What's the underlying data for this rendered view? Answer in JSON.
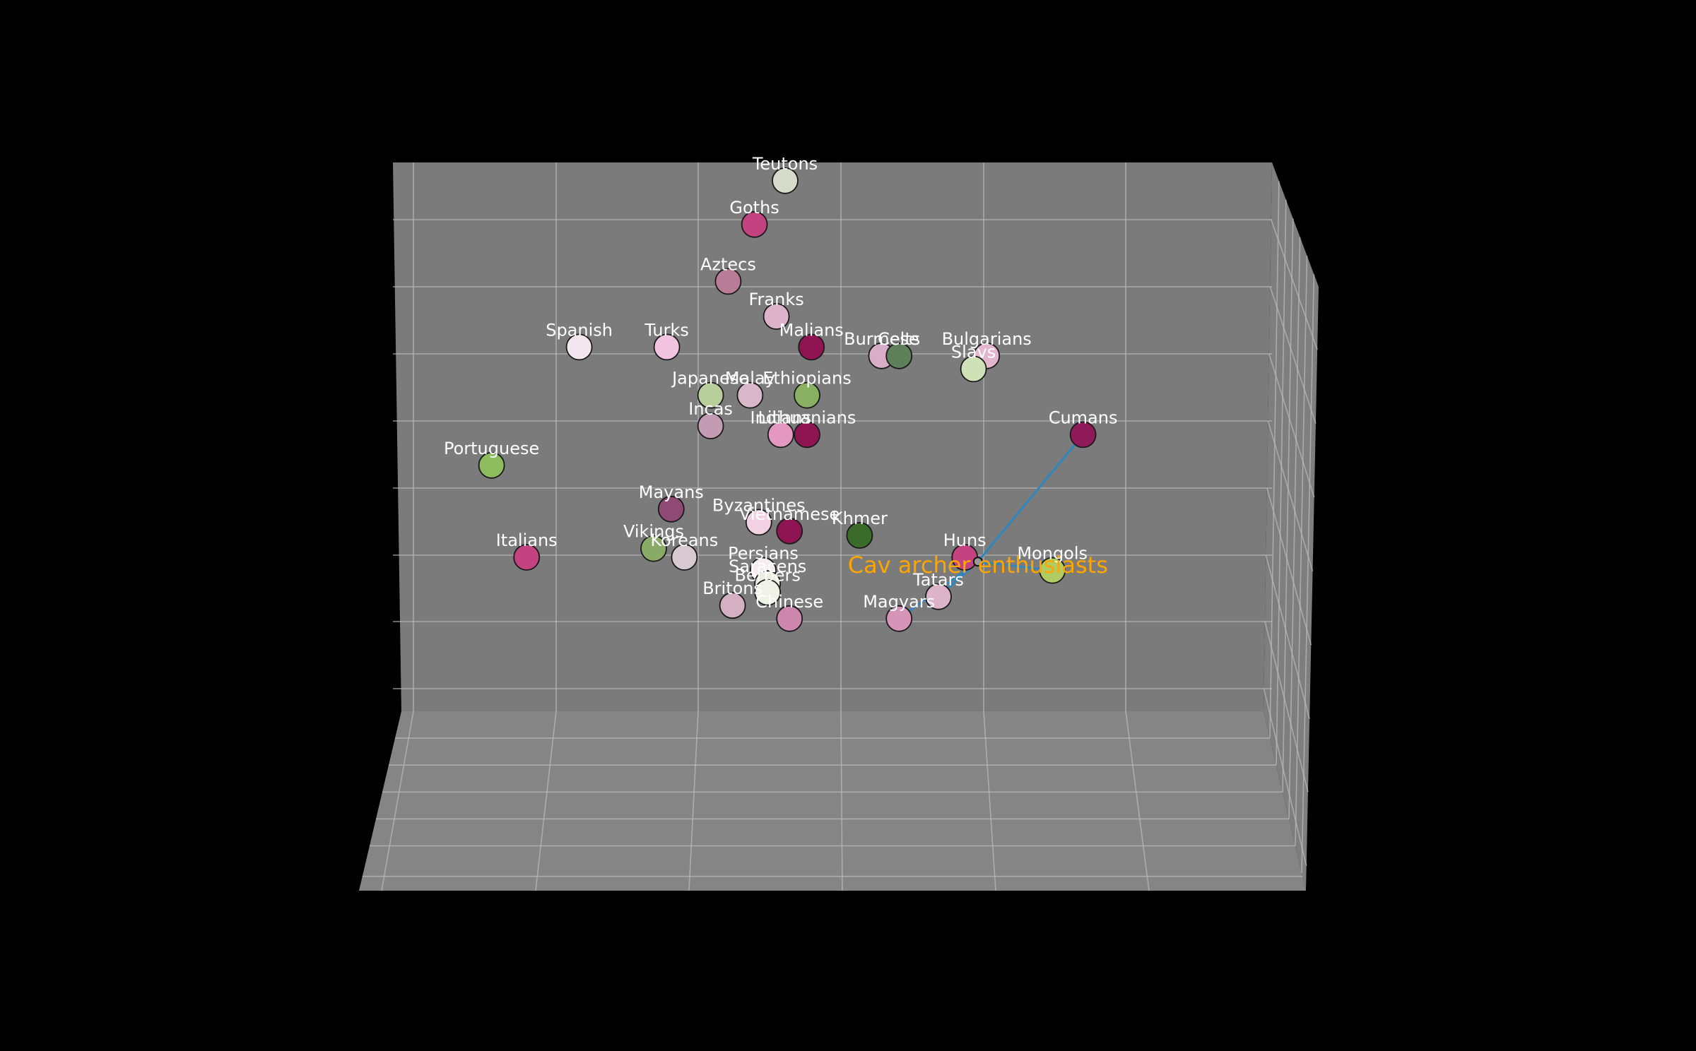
{
  "chart_data": {
    "type": "scatter",
    "projection": "3d",
    "title": "",
    "xlabel": "",
    "ylabel": "",
    "zlabel": "",
    "grid": true,
    "colors": {
      "figure_bg": "#000000",
      "axes_bg": "#808080",
      "pane_back": "#7b7b7b",
      "pane_side": "#7e7e7e",
      "pane_floor": "#858585",
      "grid": "#b9b9b9",
      "label_text": "#ffffff",
      "annotation_text": "#ffa500",
      "annotation_line": "#2e86c1"
    },
    "points": [
      {
        "label": "Teutons",
        "x": 0.55,
        "y": 0.14,
        "color": "#d6dccb"
      },
      {
        "label": "Goths",
        "x": 0.48,
        "y": 0.24,
        "color": "#c2437f"
      },
      {
        "label": "Aztecs",
        "x": 0.42,
        "y": 0.37,
        "color": "#b87c97"
      },
      {
        "label": "Franks",
        "x": 0.53,
        "y": 0.45,
        "color": "#ddb3c9"
      },
      {
        "label": "Spanish",
        "x": 0.08,
        "y": 0.52,
        "color": "#f4e6ee"
      },
      {
        "label": "Turks",
        "x": 0.28,
        "y": 0.52,
        "color": "#f3c4e0"
      },
      {
        "label": "Malians",
        "x": 0.61,
        "y": 0.52,
        "color": "#8e1552"
      },
      {
        "label": "Burmese",
        "x": 0.77,
        "y": 0.54,
        "color": "#d8adc8"
      },
      {
        "label": "Celts",
        "x": 0.81,
        "y": 0.54,
        "color": "#5e7f5a"
      },
      {
        "label": "Bulgarians",
        "x": 1.01,
        "y": 0.54,
        "color": "#e3b6cd"
      },
      {
        "label": "Slavs",
        "x": 0.98,
        "y": 0.57,
        "color": "#cfe2b7"
      },
      {
        "label": "Japanese",
        "x": 0.38,
        "y": 0.63,
        "color": "#b8cf9b"
      },
      {
        "label": "Malay",
        "x": 0.47,
        "y": 0.63,
        "color": "#d9b7c9"
      },
      {
        "label": "Ethiopians",
        "x": 0.6,
        "y": 0.63,
        "color": "#8ab063"
      },
      {
        "label": "Incas",
        "x": 0.38,
        "y": 0.7,
        "color": "#c39bb2"
      },
      {
        "label": "Indians",
        "x": 0.54,
        "y": 0.72,
        "color": "#e497c1"
      },
      {
        "label": "Lithuanians",
        "x": 0.6,
        "y": 0.72,
        "color": "#8e1552"
      },
      {
        "label": "Cumans",
        "x": 1.23,
        "y": 0.72,
        "color": "#8e1a5a"
      },
      {
        "label": "Portuguese",
        "x": -0.12,
        "y": 0.79,
        "color": "#8cbc5e"
      },
      {
        "label": "Mayans",
        "x": 0.29,
        "y": 0.89,
        "color": "#8e4a72"
      },
      {
        "label": "Byzantines",
        "x": 0.49,
        "y": 0.92,
        "color": "#f2d1e3"
      },
      {
        "label": "Vietnamese",
        "x": 0.56,
        "y": 0.94,
        "color": "#8e1552"
      },
      {
        "label": "Khmer",
        "x": 0.72,
        "y": 0.95,
        "color": "#3b6b2a"
      },
      {
        "label": "Vikings",
        "x": 0.25,
        "y": 0.98,
        "color": "#8aab68"
      },
      {
        "label": "Koreans",
        "x": 0.32,
        "y": 1.0,
        "color": "#d8c8d0"
      },
      {
        "label": "Huns",
        "x": 0.96,
        "y": 1.0,
        "color": "#c2437f"
      },
      {
        "label": "Italians",
        "x": -0.04,
        "y": 1.0,
        "color": "#c2437f"
      },
      {
        "label": "Persians",
        "x": 0.5,
        "y": 1.03,
        "color": "#f6edf1"
      },
      {
        "label": "Saracens",
        "x": 0.51,
        "y": 1.06,
        "color": "#e8efdc"
      },
      {
        "label": "Mongols",
        "x": 1.16,
        "y": 1.03,
        "color": "#b0cb62"
      },
      {
        "label": "Berbers",
        "x": 0.51,
        "y": 1.08,
        "color": "#eef3e6"
      },
      {
        "label": "Britons",
        "x": 0.43,
        "y": 1.11,
        "color": "#d4b0c2"
      },
      {
        "label": "Tatars",
        "x": 0.9,
        "y": 1.09,
        "color": "#ddb3c9"
      },
      {
        "label": "Chinese",
        "x": 0.56,
        "y": 1.14,
        "color": "#cd87ac"
      },
      {
        "label": "Magyars",
        "x": 0.81,
        "y": 1.14,
        "color": "#d695b8"
      }
    ],
    "cluster": {
      "label": "Cav archer enthusiasts",
      "center": {
        "x": 0.99,
        "y": 1.01
      },
      "members": [
        "Cumans",
        "Mongols",
        "Magyars",
        "Tatars",
        "Huns"
      ]
    }
  }
}
